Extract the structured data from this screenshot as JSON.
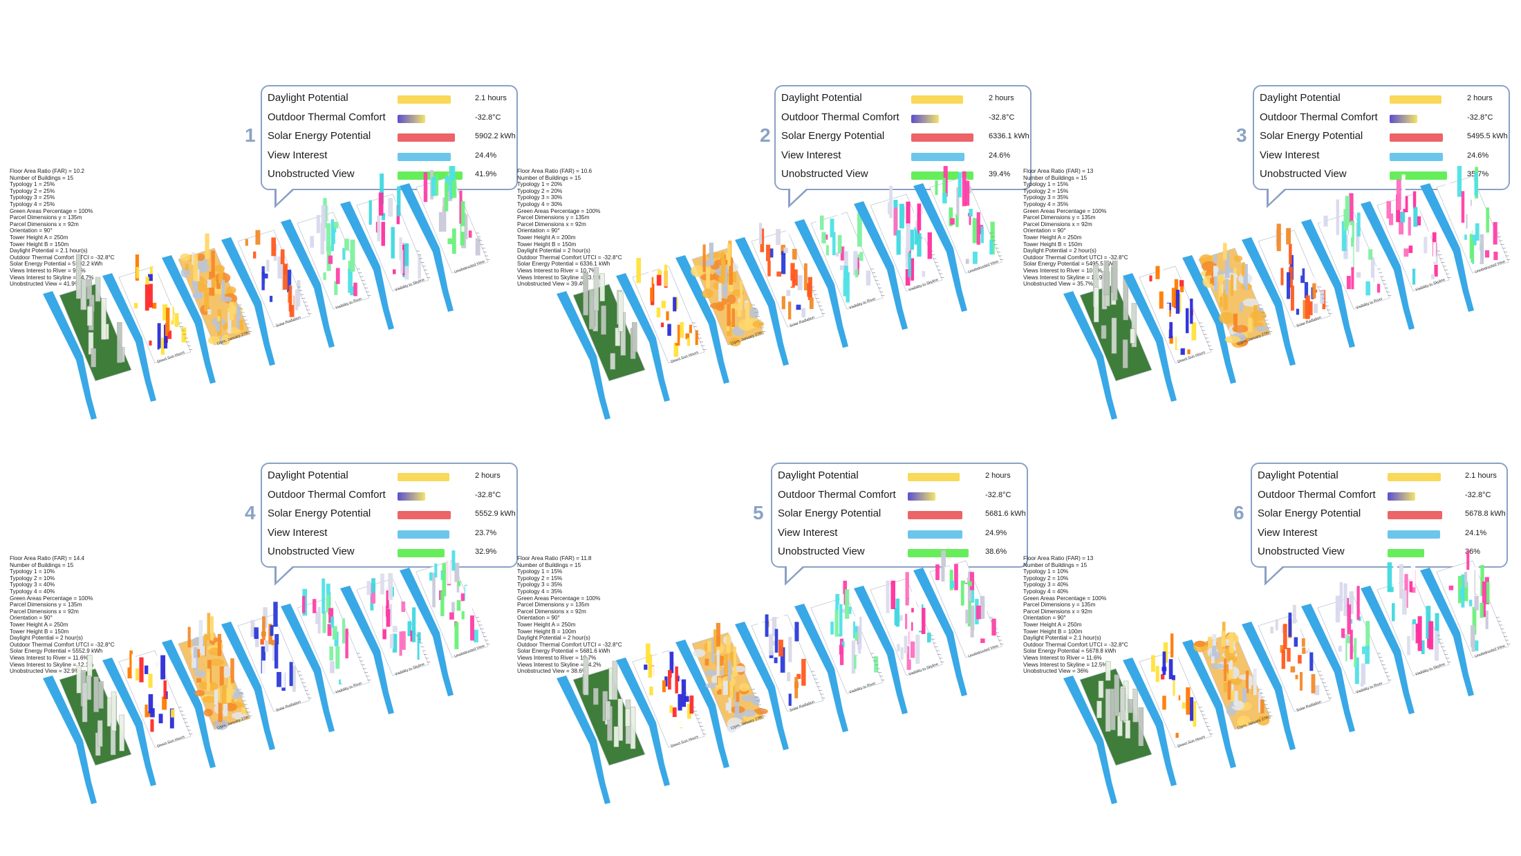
{
  "metric_labels": [
    "Daylight Potential",
    "Outdoor Thermal Comfort",
    "Solar Energy Potential",
    "View Interest",
    "Unobstructed View"
  ],
  "metric_colors": {
    "daylight": "#f9d85a",
    "thermal_from": "#5a4fd0",
    "thermal_to": "#f3e36a",
    "solar": "#ec6468",
    "view_interest": "#6cc6ec",
    "unobstructed": "#66ee5a"
  },
  "map_labels": {
    "sun_hours": "Direct Sun Hours",
    "thermal": "12pm, January 27th",
    "solar": "Solar Radiation",
    "river": "Visibility to River",
    "skyline": "Visibility to Skyline",
    "unobstructed": "Unobstructed View"
  },
  "options": [
    {
      "number": "1",
      "values": [
        "2.1 hours",
        "-32.8°C",
        "5902.2 kWh",
        "24.4%",
        "41.9%"
      ],
      "bar_levels": [
        0.7,
        0.36,
        0.75,
        0.7,
        0.85
      ],
      "params": [
        "Floor Area Ratio (FAR) = 10.2",
        "Number of Buildings = 15",
        "Typology 1 = 25%",
        "Typology 2 = 25%",
        "Typology 3 = 25%",
        "Typology 4 = 25%",
        "Green Areas Percentage = 100%",
        "Parcel Dimensions y = 135m",
        "Parcel Dimensions x = 92m",
        "Orientation = 90°",
        "Tower Height A = 250m",
        "Tower Height B = 150m",
        "Daylight Potential = 2.1 hour(s)",
        "Outdoor Thermal Comfort UTCI = -32.8°C",
        "Solar Energy Potential = 5902.2 kWh",
        "Views Interest to River = 9.7%",
        "Views Interest to Skyline = 14.7%",
        "Unobstructed View = 41.9%"
      ]
    },
    {
      "number": "2",
      "values": [
        "2 hours",
        "-32.8°C",
        "6336.1 kWh",
        "24.6%",
        "39.4%"
      ],
      "bar_levels": [
        0.68,
        0.36,
        0.82,
        0.7,
        0.82
      ],
      "params": [
        "Floor Area Ratio (FAR) = 10.6",
        "Number of Buildings = 15",
        "Typology 1 = 20%",
        "Typology 2 = 20%",
        "Typology 3 = 30%",
        "Typology 4 = 30%",
        "Green Areas Percentage = 100%",
        "Parcel Dimensions y = 135m",
        "Parcel Dimensions x = 92m",
        "Orientation = 90°",
        "Tower Height A = 200m",
        "Tower Height B = 150m",
        "Daylight Potential = 2 hour(s)",
        "Outdoor Thermal Comfort UTCI = -32.8°C",
        "Solar Energy Potential = 6336.1 kWh",
        "Views Interest to River = 10.7%",
        "Views Interest to Skyline = 13.9%",
        "Unobstructed View = 39.4%"
      ]
    },
    {
      "number": "3",
      "values": [
        "2 hours",
        "-32.8°C",
        "5495.5 kWh",
        "24.6%",
        "35.7%"
      ],
      "bar_levels": [
        0.68,
        0.36,
        0.7,
        0.7,
        0.75
      ],
      "params": [
        "Floor Area Ratio (FAR) = 13",
        "Number of Buildings = 15",
        "Typology 1 = 15%",
        "Typology 2 = 15%",
        "Typology 3 = 35%",
        "Typology 4 = 35%",
        "Green Areas Percentage = 100%",
        "Parcel Dimensions y = 135m",
        "Parcel Dimensions x = 92m",
        "Orientation = 90°",
        "Tower Height A = 250m",
        "Tower Height B = 150m",
        "Daylight Potential = 2 hour(s)",
        "Outdoor Thermal Comfort UTCI = -32.8°C",
        "Solar Energy Potential = 5495.5 kWh",
        "Views Interest to River = 10.7%",
        "Views Interest to Skyline = 13.9%",
        "Unobstructed View = 35.7%"
      ]
    },
    {
      "number": "4",
      "values": [
        "2 hours",
        "-32.8°C",
        "5552.9 kWh",
        "23.7%",
        "32.9%"
      ],
      "bar_levels": [
        0.68,
        0.36,
        0.7,
        0.68,
        0.62
      ],
      "params": [
        "Floor Area Ratio (FAR) = 14.4",
        "Number of Buildings = 15",
        "Typology 1 = 10%",
        "Typology 2 = 10%",
        "Typology 3 = 40%",
        "Typology 4 = 40%",
        "Green Areas Percentage = 100%",
        "Parcel Dimensions y = 135m",
        "Parcel Dimensions x = 92m",
        "Orientation = 90°",
        "Tower Height A = 250m",
        "Tower Height B = 150m",
        "Daylight Potential = 2 hour(s)",
        "Outdoor Thermal Comfort UTCI = -32.8°C",
        "Solar Energy Potential = 5552.9 kWh",
        "Views Interest to River = 11.6%",
        "Views Interest to Skyline = 12.1%",
        "Unobstructed View = 32.9%"
      ]
    },
    {
      "number": "5",
      "values": [
        "2 hours",
        "-32.8°C",
        "5681.6 kWh",
        "24.9%",
        "38.6%"
      ],
      "bar_levels": [
        0.68,
        0.36,
        0.72,
        0.72,
        0.8
      ],
      "params": [
        "Floor Area Ratio (FAR) = 11.8",
        "Number of Buildings = 15",
        "Typology 1 = 15%",
        "Typology 2 = 15%",
        "Typology 3 = 35%",
        "Typology 4 = 35%",
        "Green Areas Percentage = 100%",
        "Parcel Dimensions y = 135m",
        "Parcel Dimensions x = 92m",
        "Orientation = 90°",
        "Tower Height A = 250m",
        "Tower Height B = 100m",
        "Daylight Potential = 2 hour(s)",
        "Outdoor Thermal Comfort UTCI = -32.8°C",
        "Solar Energy Potential = 5681.6 kWh",
        "Views Interest to River = 10.7%",
        "Views Interest to Skyline = 14.2%",
        "Unobstructed View = 38.6%"
      ]
    },
    {
      "number": "6",
      "values": [
        "2.1 hours",
        "-32.8°C",
        "5678.8 kWh",
        "24.1%",
        "36%"
      ],
      "bar_levels": [
        0.7,
        0.36,
        0.72,
        0.69,
        0.48
      ],
      "params": [
        "Floor Area Ratio (FAR) = 13",
        "Number of Buildings = 15",
        "Typology 1 = 10%",
        "Typology 2 = 10%",
        "Typology 3 = 40%",
        "Typology 4 = 40%",
        "Green Areas Percentage = 100%",
        "Parcel Dimensions y = 135m",
        "Parcel Dimensions x = 92m",
        "Orientation = 90°",
        "Tower Height A = 250m",
        "Tower Height B = 100m",
        "Daylight Potential = 2.1 hour(s)",
        "Outdoor Thermal Comfort UTCI = -32.8°C",
        "Solar Energy Potential = 5678.8 kWh",
        "Views Interest to River = 11.6%",
        "Views Interest to Skyline = 12.5%",
        "Unobstructed View = 36%"
      ]
    }
  ]
}
